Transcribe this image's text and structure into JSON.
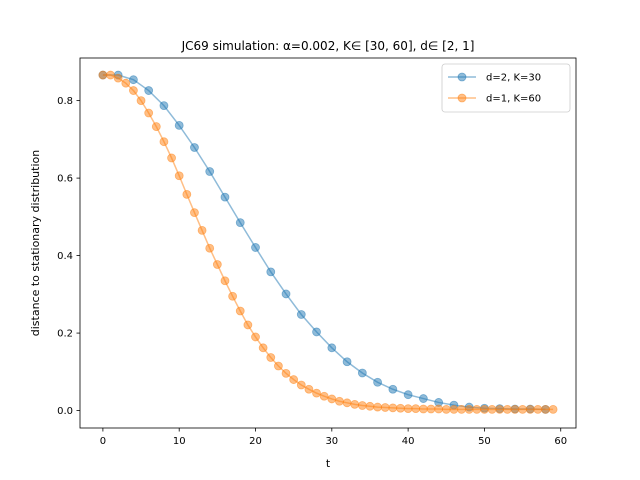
{
  "chart_data": {
    "type": "line",
    "title": "JC69 simulation: α=0.002, K∈ [30, 60], d∈ [2, 1]",
    "xlabel": "t",
    "ylabel": "distance to stationary distribution",
    "xlim": [
      -3,
      62
    ],
    "ylim": [
      -0.045,
      0.91
    ],
    "xticks": [
      0,
      10,
      20,
      30,
      40,
      50,
      60
    ],
    "yticks": [
      0.0,
      0.2,
      0.4,
      0.6,
      0.8
    ],
    "xtick_labels": [
      "0",
      "10",
      "20",
      "30",
      "40",
      "50",
      "60"
    ],
    "ytick_labels": [
      "0.0",
      "0.2",
      "0.4",
      "0.6",
      "0.8"
    ],
    "grid": false,
    "legend_position": "top-right",
    "series": [
      {
        "name": "d=2, K=30",
        "color": "#1f77b4",
        "x": [
          0,
          2,
          4,
          6,
          8,
          10,
          12,
          14,
          16,
          18,
          20,
          22,
          24,
          26,
          28,
          30,
          32,
          34,
          36,
          38,
          40,
          42,
          44,
          46,
          48,
          50,
          52,
          54,
          56,
          58
        ],
        "y": [
          0.866,
          0.866,
          0.854,
          0.826,
          0.787,
          0.736,
          0.679,
          0.617,
          0.551,
          0.485,
          0.421,
          0.358,
          0.301,
          0.248,
          0.203,
          0.162,
          0.126,
          0.097,
          0.073,
          0.055,
          0.041,
          0.031,
          0.021,
          0.014,
          0.009,
          0.006,
          0.005,
          0.004,
          0.004,
          0.003
        ]
      },
      {
        "name": "d=1, K=60",
        "color": "#ff7f0e",
        "x": [
          0,
          1,
          2,
          3,
          4,
          5,
          6,
          7,
          8,
          9,
          10,
          11,
          12,
          13,
          14,
          15,
          16,
          17,
          18,
          19,
          20,
          21,
          22,
          23,
          24,
          25,
          26,
          27,
          28,
          29,
          30,
          31,
          32,
          33,
          34,
          35,
          36,
          37,
          38,
          39,
          40,
          41,
          42,
          43,
          44,
          45,
          46,
          47,
          48,
          49,
          50,
          51,
          52,
          53,
          54,
          55,
          56,
          57,
          58,
          59
        ],
        "y": [
          0.866,
          0.866,
          0.858,
          0.845,
          0.826,
          0.8,
          0.768,
          0.733,
          0.694,
          0.652,
          0.606,
          0.558,
          0.511,
          0.465,
          0.419,
          0.377,
          0.335,
          0.295,
          0.257,
          0.221,
          0.19,
          0.162,
          0.137,
          0.115,
          0.096,
          0.08,
          0.066,
          0.055,
          0.045,
          0.037,
          0.03,
          0.024,
          0.02,
          0.016,
          0.013,
          0.011,
          0.009,
          0.008,
          0.007,
          0.006,
          0.005,
          0.005,
          0.004,
          0.004,
          0.004,
          0.003,
          0.003,
          0.003,
          0.003,
          0.003,
          0.003,
          0.003,
          0.003,
          0.003,
          0.003,
          0.003,
          0.003,
          0.003,
          0.003,
          0.003
        ]
      }
    ]
  }
}
